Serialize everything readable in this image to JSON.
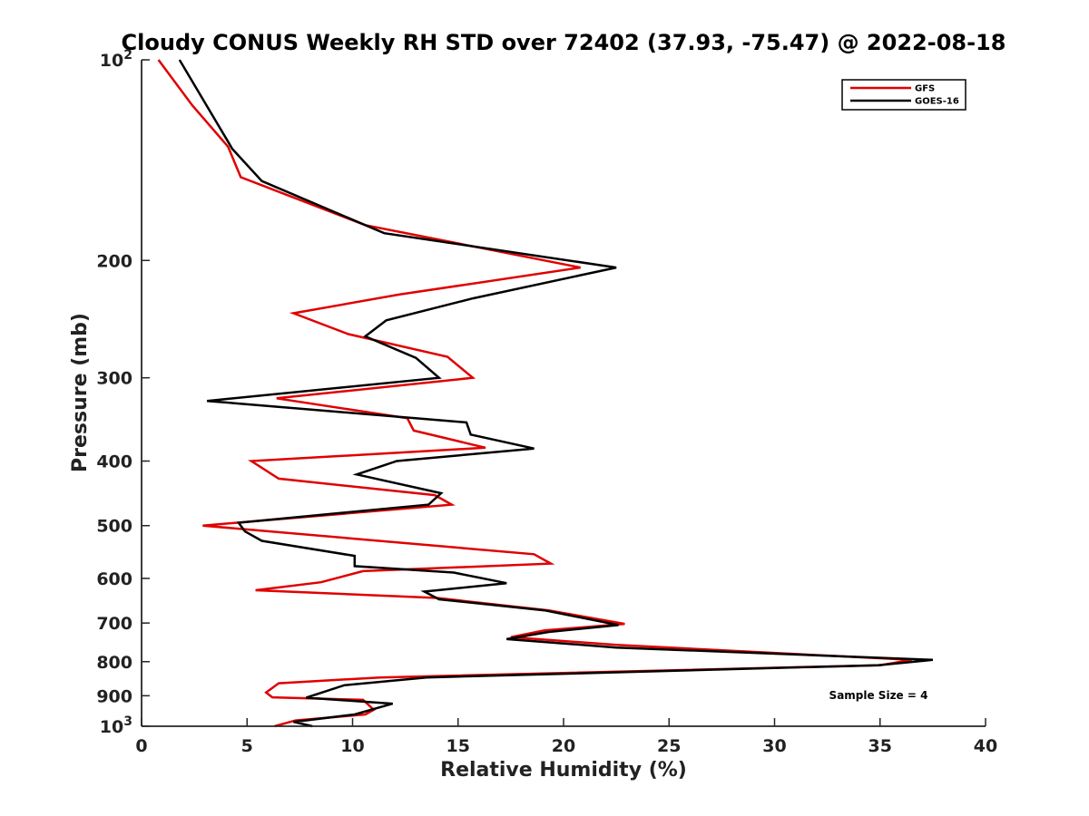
{
  "chart_data": {
    "type": "line",
    "title": "Cloudy CONUS Weekly RH STD over 72402 (37.93, -75.47) @ 2022-08-18",
    "xlabel": "Relative Humidity (%)",
    "ylabel": "Pressure (mb)",
    "xlim": [
      0,
      40
    ],
    "ylim": [
      100,
      1000
    ],
    "yscale": "log",
    "y_reversed": true,
    "x_ticks": [
      "0",
      "5",
      "10",
      "15",
      "20",
      "25",
      "30",
      "35",
      "40"
    ],
    "y_ticks": [
      {
        "value": 100,
        "base": "10",
        "exp": "2"
      },
      {
        "value": 200,
        "label": "200"
      },
      {
        "value": 300,
        "label": "300"
      },
      {
        "value": 400,
        "label": "400"
      },
      {
        "value": 500,
        "label": "500"
      },
      {
        "value": 600,
        "label": "600"
      },
      {
        "value": 700,
        "label": "700"
      },
      {
        "value": 800,
        "label": "800"
      },
      {
        "value": 900,
        "label": "900"
      },
      {
        "value": 1000,
        "base": "10",
        "exp": "3"
      }
    ],
    "grid": false,
    "legend_position": "top-right",
    "series": [
      {
        "name": "GFS",
        "color": "#e00000",
        "points": [
          [
            0.8,
            100
          ],
          [
            2.4,
            117
          ],
          [
            4.1,
            135
          ],
          [
            4.7,
            150
          ],
          [
            10.6,
            177
          ],
          [
            20.8,
            205
          ],
          [
            12.2,
            225
          ],
          [
            7.2,
            240
          ],
          [
            9.8,
            258
          ],
          [
            14.5,
            279
          ],
          [
            15.7,
            300
          ],
          [
            6.4,
            322
          ],
          [
            12.6,
            345
          ],
          [
            12.9,
            360
          ],
          [
            16.3,
            382
          ],
          [
            5.2,
            400
          ],
          [
            6.5,
            425
          ],
          [
            13.9,
            450
          ],
          [
            14.7,
            465
          ],
          [
            2.9,
            500
          ],
          [
            18.6,
            552
          ],
          [
            19.4,
            570
          ],
          [
            10.5,
            585
          ],
          [
            8.5,
            608
          ],
          [
            5.4,
            625
          ],
          [
            14.0,
            642
          ],
          [
            19.3,
            670
          ],
          [
            22.9,
            702
          ],
          [
            19.1,
            718
          ],
          [
            17.5,
            735
          ],
          [
            22.5,
            755
          ],
          [
            36.5,
            795
          ],
          [
            35.0,
            810
          ],
          [
            11.3,
            845
          ],
          [
            6.5,
            862
          ],
          [
            5.9,
            890
          ],
          [
            6.2,
            905
          ],
          [
            10.5,
            913
          ],
          [
            11.0,
            945
          ],
          [
            10.6,
            960
          ],
          [
            7.3,
            980
          ],
          [
            6.3,
            1000
          ]
        ]
      },
      {
        "name": "GOES-16",
        "color": "#000000",
        "points": [
          [
            1.8,
            100
          ],
          [
            4.3,
            136
          ],
          [
            5.7,
            152
          ],
          [
            11.5,
            182
          ],
          [
            22.5,
            205
          ],
          [
            15.7,
            228
          ],
          [
            11.6,
            246
          ],
          [
            10.6,
            260
          ],
          [
            13.0,
            280
          ],
          [
            14.1,
            300
          ],
          [
            3.1,
            325
          ],
          [
            15.4,
            350
          ],
          [
            15.6,
            365
          ],
          [
            18.6,
            383
          ],
          [
            12.1,
            400
          ],
          [
            10.2,
            419
          ],
          [
            14.2,
            447
          ],
          [
            13.6,
            465
          ],
          [
            4.6,
            495
          ],
          [
            4.9,
            510
          ],
          [
            5.7,
            527
          ],
          [
            10.1,
            555
          ],
          [
            10.1,
            575
          ],
          [
            14.8,
            588
          ],
          [
            17.3,
            610
          ],
          [
            13.4,
            628
          ],
          [
            14.1,
            645
          ],
          [
            19.1,
            670
          ],
          [
            22.6,
            705
          ],
          [
            19.3,
            722
          ],
          [
            17.3,
            740
          ],
          [
            22.5,
            762
          ],
          [
            37.5,
            795
          ],
          [
            34.9,
            810
          ],
          [
            13.5,
            845
          ],
          [
            9.6,
            868
          ],
          [
            7.8,
            906
          ],
          [
            11.9,
            925
          ],
          [
            10.1,
            960
          ],
          [
            7.2,
            985
          ],
          [
            8.1,
            1000
          ]
        ]
      }
    ],
    "annotations": [
      {
        "text": "Sample Size = 4"
      }
    ]
  }
}
